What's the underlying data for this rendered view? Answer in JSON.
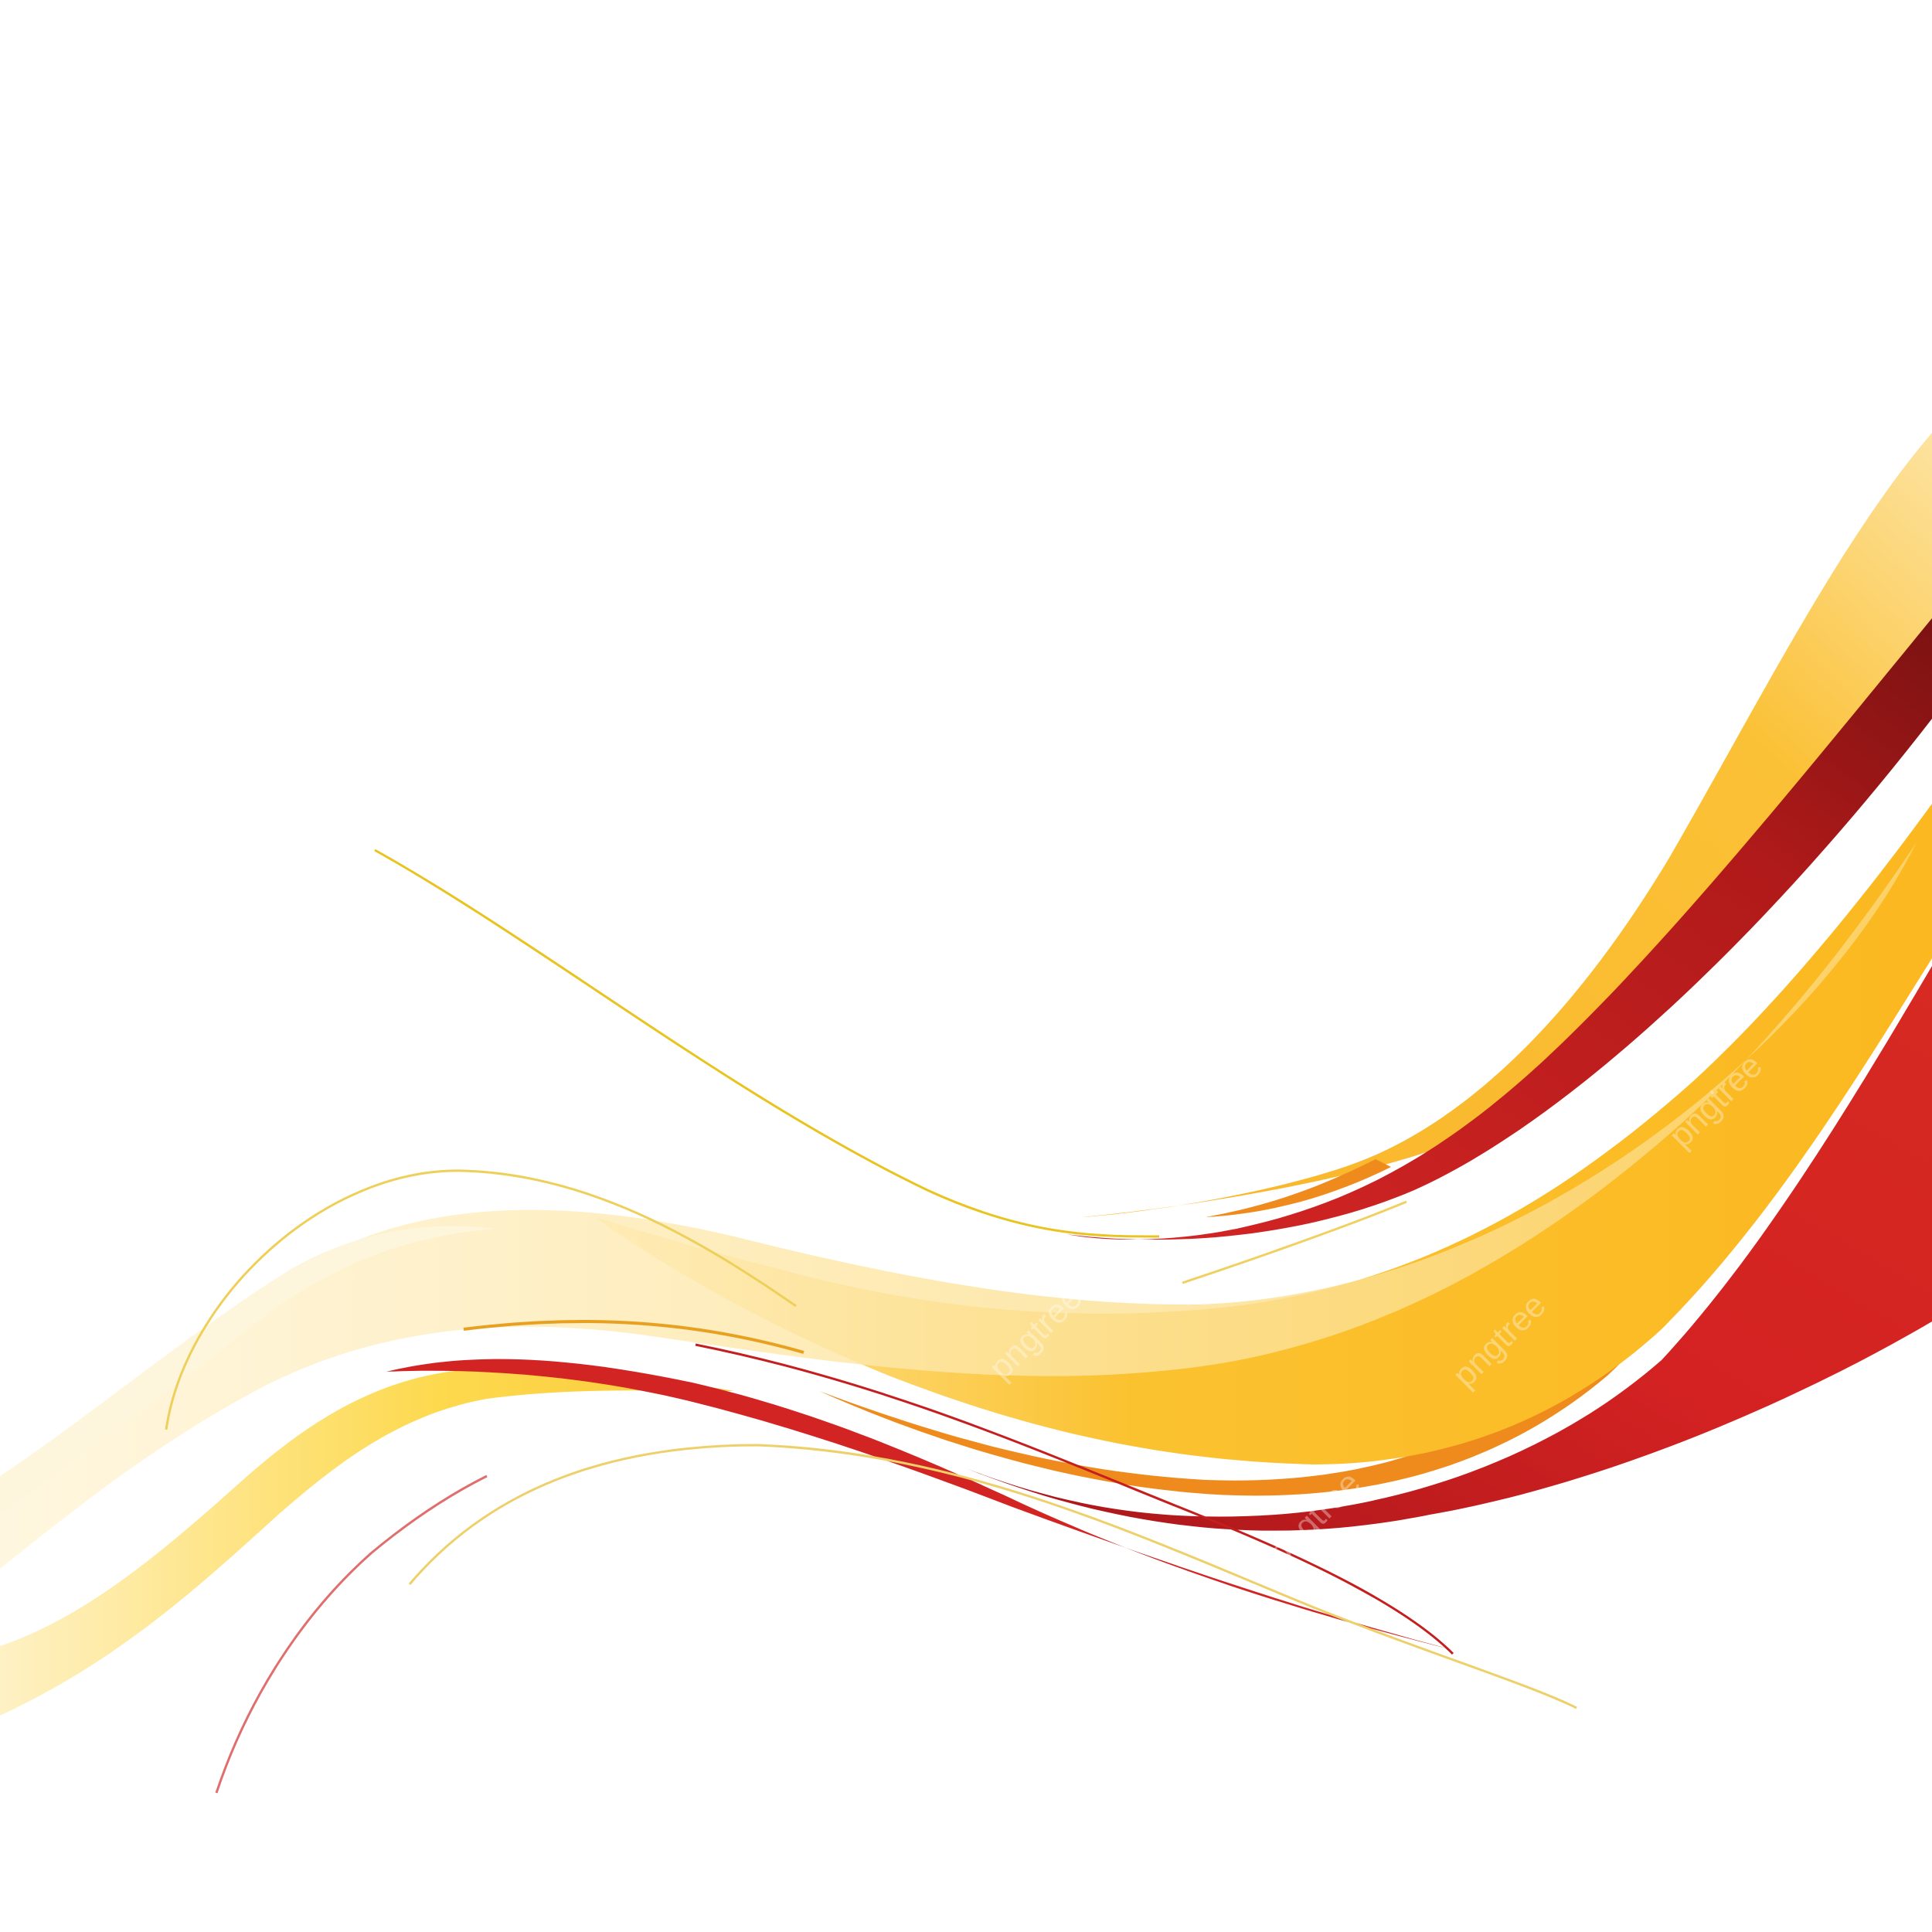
{
  "artwork": {
    "kind": "abstract-wave-background",
    "colors": {
      "background": "#ffffff",
      "yellow_main": "#fbbc25",
      "yellow_light": "#fde9a8",
      "yellow_pale": "#fef4d6",
      "orange": "#ef8a1c",
      "red_main": "#d32424",
      "red_dark": "#8e1414",
      "thin_line_yellow": "#e9c31f",
      "thin_line_red": "#c41e1e"
    }
  },
  "watermark": {
    "text": "pngtree"
  }
}
